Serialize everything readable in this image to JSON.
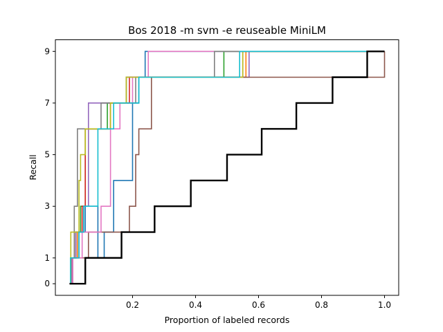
{
  "chart_data": {
    "type": "line",
    "step": true,
    "title": "Bos 2018 -m svm -e reuseable MiniLM",
    "xlabel": "Proportion of labeled records",
    "ylabel": "Recall",
    "xlim": [
      -0.045,
      1.045
    ],
    "ylim": [
      -0.45,
      9.45
    ],
    "xticks": [
      {
        "value": 0.2,
        "label": "0.2"
      },
      {
        "value": 0.4,
        "label": "0.4"
      },
      {
        "value": 0.6,
        "label": "0.6"
      },
      {
        "value": 0.8,
        "label": "0.8"
      },
      {
        "value": 1.0,
        "label": "1.0"
      }
    ],
    "yticks": [
      {
        "value": 0,
        "label": "0"
      },
      {
        "value": 1,
        "label": "1"
      },
      {
        "value": 3,
        "label": "3"
      },
      {
        "value": 5,
        "label": "5"
      },
      {
        "value": 7,
        "label": "7"
      },
      {
        "value": 9,
        "label": "9"
      }
    ],
    "grid": false,
    "legend": "none",
    "series": [
      {
        "color": "#1f77b4",
        "x": [
          0.0,
          0.004,
          0.03,
          0.05,
          0.09,
          0.11,
          0.14,
          0.2,
          0.22,
          0.24,
          0.53,
          1.0
        ],
        "y": [
          0,
          1,
          2,
          3,
          1,
          2,
          4,
          7,
          8,
          9,
          9,
          9
        ]
      },
      {
        "color": "#ff7f0e",
        "x": [
          0.0,
          0.006,
          0.025,
          0.04,
          0.05,
          0.13,
          0.18,
          0.21,
          0.56,
          1.0
        ],
        "y": [
          0,
          1,
          2,
          3,
          6,
          7,
          8,
          8,
          9,
          9
        ]
      },
      {
        "color": "#2ca02c",
        "x": [
          0.0,
          0.005,
          0.02,
          0.035,
          0.05,
          0.12,
          0.18,
          0.21,
          0.49,
          1.0
        ],
        "y": [
          0,
          1,
          2,
          3,
          6,
          7,
          8,
          8,
          9,
          9
        ]
      },
      {
        "color": "#d62728",
        "x": [
          0.0,
          0.006,
          0.02,
          0.04,
          0.05,
          0.13,
          0.19,
          0.21,
          0.55,
          1.0
        ],
        "y": [
          0,
          1,
          2,
          3,
          6,
          7,
          8,
          8,
          9,
          9
        ]
      },
      {
        "color": "#9467bd",
        "x": [
          0.0,
          0.007,
          0.02,
          0.045,
          0.06,
          0.12,
          0.18,
          0.2,
          0.57,
          1.0
        ],
        "y": [
          0,
          1,
          2,
          3,
          7,
          7,
          8,
          8,
          9,
          9
        ]
      },
      {
        "color": "#8c564b",
        "x": [
          0.0,
          0.01,
          0.03,
          0.06,
          0.17,
          0.19,
          0.21,
          0.22,
          0.26,
          1.0
        ],
        "y": [
          0,
          1,
          1,
          2,
          2,
          3,
          5,
          6,
          8,
          9
        ]
      },
      {
        "color": "#e377c2",
        "x": [
          0.0,
          0.01,
          0.02,
          0.04,
          0.1,
          0.13,
          0.16,
          0.2,
          0.25,
          1.0
        ],
        "y": [
          0,
          1,
          1,
          2,
          3,
          6,
          7,
          8,
          9,
          9
        ]
      },
      {
        "color": "#7f7f7f",
        "x": [
          0.0,
          0.004,
          0.015,
          0.025,
          0.1,
          0.15,
          0.21,
          0.46,
          1.0
        ],
        "y": [
          0,
          1,
          3,
          6,
          7,
          7,
          8,
          9,
          9
        ]
      },
      {
        "color": "#bcbd22",
        "x": [
          0.0,
          0.004,
          0.03,
          0.035,
          0.05,
          0.13,
          0.18,
          0.2,
          0.55,
          1.0
        ],
        "y": [
          0,
          2,
          4,
          5,
          6,
          7,
          8,
          8,
          9,
          9
        ]
      },
      {
        "color": "#17becf",
        "x": [
          0.0,
          0.003,
          0.03,
          0.045,
          0.09,
          0.14,
          0.2,
          0.22,
          0.54,
          1.0
        ],
        "y": [
          0,
          1,
          2,
          3,
          6,
          7,
          7,
          8,
          9,
          9
        ]
      },
      {
        "color": "#000000",
        "reference": true,
        "x": [
          0.0,
          0.05,
          0.165,
          0.27,
          0.385,
          0.5,
          0.61,
          0.72,
          0.835,
          0.945,
          1.0
        ],
        "y": [
          0,
          1,
          2,
          3,
          4,
          5,
          6,
          7,
          8,
          9,
          9
        ]
      }
    ]
  }
}
